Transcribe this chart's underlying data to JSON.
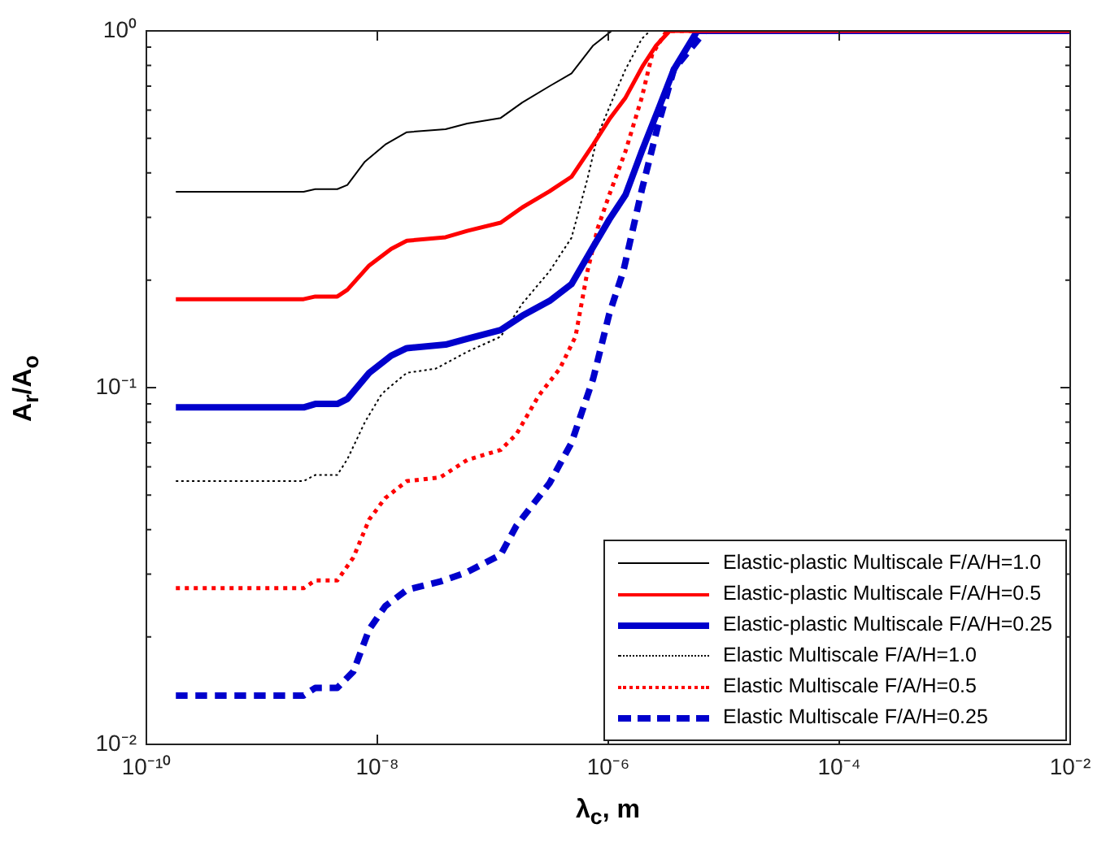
{
  "chart_data": {
    "type": "line",
    "xlabel": "λ$_{c}$, m",
    "ylabel": "A$_{r}$/A$_{o}$",
    "log": "xy",
    "grid": false,
    "legend": "bottom right",
    "marker": "none",
    "xlim": [
      1e-10,
      0.01
    ],
    "xticks": [
      {
        "value": 1e-10,
        "label": "10⁻¹⁰"
      },
      {
        "value": 1e-08,
        "label": "10⁻⁸"
      },
      {
        "value": 1e-06,
        "label": "10⁻⁶"
      },
      {
        "value": 0.0001,
        "label": "10⁻⁴"
      },
      {
        "value": 0.01,
        "label": "10⁻²"
      }
    ],
    "ylim": [
      0.01,
      1
    ],
    "yticks": [
      {
        "value": 0.01,
        "label": "10⁻²"
      },
      {
        "value": 0.02,
        "label": null
      },
      {
        "value": 0.03,
        "label": null
      },
      {
        "value": 0.04,
        "label": null
      },
      {
        "value": 0.05,
        "label": null
      },
      {
        "value": 0.06,
        "label": null
      },
      {
        "value": 0.07,
        "label": null
      },
      {
        "value": 0.08,
        "label": null
      },
      {
        "value": 0.09,
        "label": null
      },
      {
        "value": 0.1,
        "label": "10⁻¹"
      },
      {
        "value": 0.2,
        "label": null
      },
      {
        "value": 0.3,
        "label": null
      },
      {
        "value": 0.4,
        "label": null
      },
      {
        "value": 0.5,
        "label": null
      },
      {
        "value": 0.6,
        "label": null
      },
      {
        "value": 0.7,
        "label": null
      },
      {
        "value": 0.8,
        "label": null
      },
      {
        "value": 0.9,
        "label": null
      },
      {
        "value": 1,
        "label": "10⁰"
      }
    ],
    "series": [
      {
        "name": "Elastic-plastic Multiscale F/A/H=1.0",
        "color": "#000000",
        "line_style": "solid",
        "x": [
          1.8e-10,
          2.3e-09,
          2.9e-09,
          4.5e-09,
          5.5e-09,
          7.8e-09,
          1.17e-08,
          1.8e-08,
          3.9e-08,
          6e-08,
          1.17e-07,
          1.8e-07,
          3.1e-07,
          4.8e-07,
          7.4e-07,
          1.07e-06,
          0.01
        ],
        "values": [
          0.354,
          0.354,
          0.36,
          0.36,
          0.37,
          0.43,
          0.48,
          0.52,
          0.53,
          0.55,
          0.57,
          0.63,
          0.7,
          0.76,
          0.91,
          1,
          1
        ]
      },
      {
        "name": "Elastic-plastic Multiscale F/A/H=0.5",
        "color": "#ff0000",
        "line_style": "solid",
        "x": [
          1.8e-10,
          2.3e-09,
          2.9e-09,
          4.5e-09,
          5.5e-09,
          8.5e-09,
          1.32e-08,
          1.8e-08,
          3.9e-08,
          6e-08,
          1.17e-07,
          1.8e-07,
          3.1e-07,
          4.8e-07,
          7.4e-07,
          1.02e-06,
          1.41e-06,
          2e-06,
          2.6e-06,
          3.4e-06,
          0.01
        ],
        "values": [
          0.177,
          0.177,
          0.18,
          0.18,
          0.188,
          0.22,
          0.245,
          0.258,
          0.264,
          0.275,
          0.29,
          0.32,
          0.355,
          0.39,
          0.48,
          0.565,
          0.65,
          0.8,
          0.91,
          1,
          1
        ]
      },
      {
        "name": "Elastic-plastic Multiscale F/A/H=0.25",
        "color": "#0000cc",
        "line_style": "solid",
        "x": [
          1.8e-10,
          2.3e-09,
          2.9e-09,
          4.5e-09,
          5.5e-09,
          8.5e-09,
          1.32e-08,
          1.8e-08,
          3.9e-08,
          6e-08,
          1.17e-07,
          1.8e-07,
          3.1e-07,
          4.8e-07,
          7.4e-07,
          1.02e-06,
          1.41e-06,
          1.95e-06,
          2.7e-06,
          3.7e-06,
          5.9e-06,
          0.01
        ],
        "values": [
          0.088,
          0.088,
          0.09,
          0.09,
          0.093,
          0.11,
          0.123,
          0.129,
          0.132,
          0.137,
          0.145,
          0.159,
          0.175,
          0.195,
          0.248,
          0.296,
          0.347,
          0.46,
          0.6,
          0.78,
          1,
          1
        ]
      },
      {
        "name": "Elastic Multiscale F/A/H=1.0",
        "color": "#000000",
        "line_style": "dotted",
        "x": [
          1.8e-10,
          2.3e-09,
          2.9e-09,
          4.5e-09,
          5.5e-09,
          7.8e-09,
          1.07e-08,
          1.17e-08,
          1.8e-08,
          3.2e-08,
          6e-08,
          1.17e-07,
          1.8e-07,
          3.1e-07,
          4.8e-07,
          6.6e-07,
          8.1e-07,
          1.15e-06,
          1.41e-06,
          1.95e-06,
          2.3e-06,
          0.01
        ],
        "values": [
          0.0547,
          0.0547,
          0.0569,
          0.0569,
          0.063,
          0.08,
          0.095,
          0.098,
          0.11,
          0.113,
          0.126,
          0.139,
          0.172,
          0.212,
          0.263,
          0.385,
          0.51,
          0.67,
          0.78,
          0.95,
          1,
          1
        ]
      },
      {
        "name": "Elastic Multiscale F/A/H=0.5",
        "color": "#ff0000",
        "line_style": "dotted",
        "x": [
          1.8e-10,
          2.3e-09,
          2.9e-09,
          4.5e-09,
          6.2e-09,
          8.5e-09,
          1.17e-08,
          1.8e-08,
          3.5e-08,
          6e-08,
          1.17e-07,
          1.6e-07,
          2.5e-07,
          3.8e-07,
          5.2e-07,
          6.6e-07,
          8.1e-07,
          1.02e-06,
          1.41e-06,
          1.95e-06,
          2.4e-06,
          3.2e-06,
          0.01
        ],
        "values": [
          0.0274,
          0.0274,
          0.0288,
          0.0288,
          0.0334,
          0.0427,
          0.049,
          0.0547,
          0.056,
          0.0627,
          0.0669,
          0.074,
          0.095,
          0.113,
          0.139,
          0.212,
          0.28,
          0.347,
          0.46,
          0.65,
          0.86,
          1,
          1
        ]
      },
      {
        "name": "Elastic Multiscale F/A/H=0.25",
        "color": "#0000cc",
        "line_style": "dashed",
        "x": [
          1.8e-10,
          2.3e-09,
          2.9e-09,
          4.5e-09,
          6.2e-09,
          8.5e-09,
          1.17e-08,
          1.8e-08,
          3.5e-08,
          6e-08,
          1.17e-07,
          1.6e-07,
          3.1e-07,
          4.8e-07,
          6.6e-07,
          7.4e-07,
          1.02e-06,
          1.35e-06,
          1.95e-06,
          2.7e-06,
          3.7e-06,
          6.9e-06,
          0.01
        ],
        "values": [
          0.0137,
          0.0137,
          0.0144,
          0.0144,
          0.016,
          0.021,
          0.0244,
          0.0271,
          0.0286,
          0.0304,
          0.034,
          0.041,
          0.054,
          0.07,
          0.095,
          0.106,
          0.161,
          0.212,
          0.358,
          0.544,
          0.78,
          1,
          1
        ]
      }
    ]
  }
}
